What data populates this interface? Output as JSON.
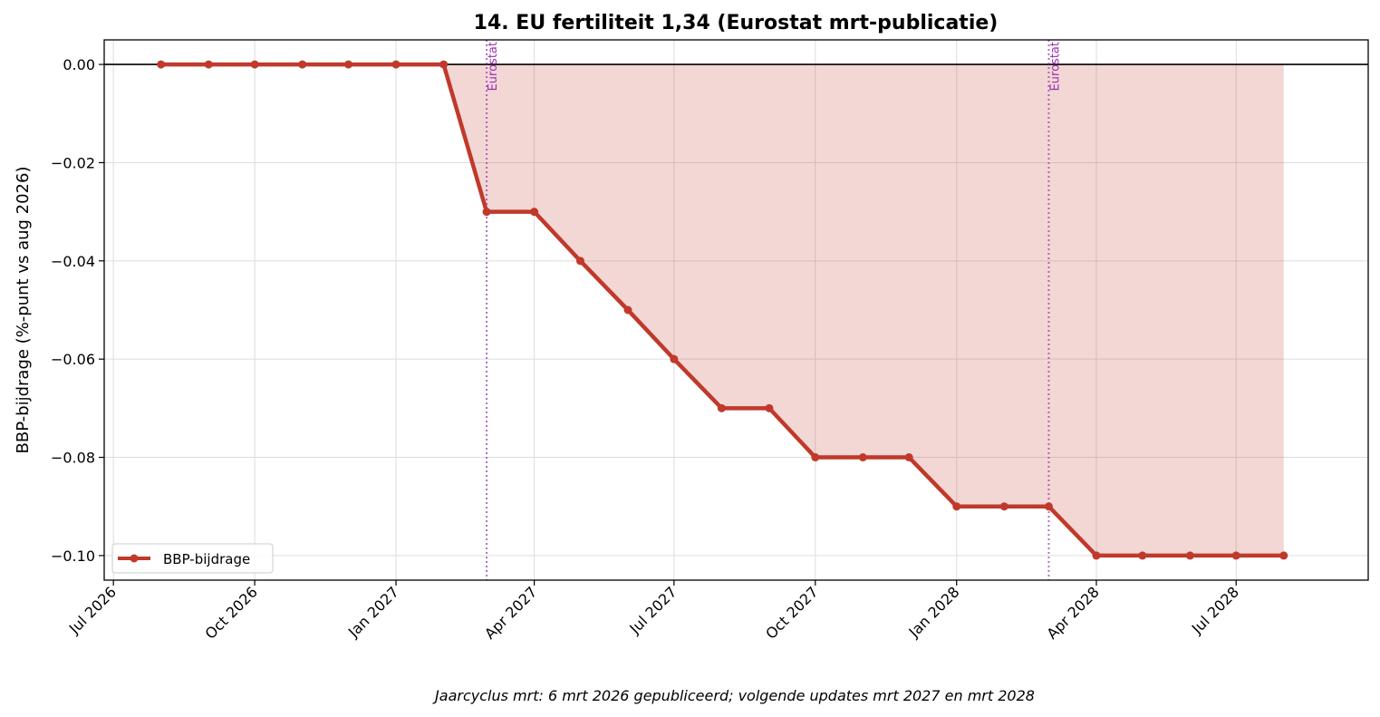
{
  "chart_data": {
    "type": "line",
    "title": "14. EU fertiliteit 1,34 (Eurostat mrt-publicatie)",
    "ylabel": "BBP-bijdrage (%-punt vs aug 2026)",
    "xlabel": "",
    "footnote": "Jaarcyclus mrt: 6 mrt 2026 gepubliceerd; volgende updates mrt 2027 en mrt 2028",
    "ylim": [
      -0.105,
      0.005
    ],
    "xlim": [
      "2026-06-25",
      "2028-09-25"
    ],
    "yticks": [
      0.0,
      -0.02,
      -0.04,
      -0.06,
      -0.08,
      -0.1
    ],
    "ytick_labels": [
      "0.00",
      "−0.02",
      "−0.04",
      "−0.06",
      "−0.08",
      "−0.10"
    ],
    "xticks": [
      "2026-07-01",
      "2026-10-01",
      "2027-01-01",
      "2027-04-01",
      "2027-07-01",
      "2027-10-01",
      "2028-01-01",
      "2028-04-01",
      "2028-07-01"
    ],
    "xtick_labels": [
      "Jul 2026",
      "Oct 2026",
      "Jan 2027",
      "Apr 2027",
      "Jul 2027",
      "Oct 2027",
      "Jan 2028",
      "Apr 2028",
      "Jul 2028"
    ],
    "grid": true,
    "legend_position": "lower-left",
    "series": [
      {
        "name": "BBP-bijdrage",
        "color": "#c0392b",
        "fill_color": "#c0392b",
        "x": [
          "2026-08-01",
          "2026-09-01",
          "2026-10-01",
          "2026-11-01",
          "2026-12-01",
          "2027-01-01",
          "2027-02-01",
          "2027-03-01",
          "2027-04-01",
          "2027-05-01",
          "2027-06-01",
          "2027-07-01",
          "2027-08-01",
          "2027-09-01",
          "2027-10-01",
          "2027-11-01",
          "2027-12-01",
          "2028-01-01",
          "2028-02-01",
          "2028-03-01",
          "2028-04-01",
          "2028-05-01",
          "2028-06-01",
          "2028-07-01",
          "2028-08-01"
        ],
        "y": [
          0.0,
          0.0,
          0.0,
          0.0,
          0.0,
          0.0,
          0.0,
          -0.03,
          -0.03,
          -0.04,
          -0.05,
          -0.06,
          -0.07,
          -0.07,
          -0.08,
          -0.08,
          -0.08,
          -0.09,
          -0.09,
          -0.09,
          -0.1,
          -0.1,
          -0.1,
          -0.1,
          -0.1
        ]
      }
    ],
    "vlines": [
      {
        "x": "2027-03-01",
        "label": "Eurostat",
        "color": "#9b30b0"
      },
      {
        "x": "2028-03-01",
        "label": "Eurostat",
        "color": "#9b30b0"
      }
    ],
    "hline": {
      "y": 0.0,
      "color": "#000000"
    }
  }
}
